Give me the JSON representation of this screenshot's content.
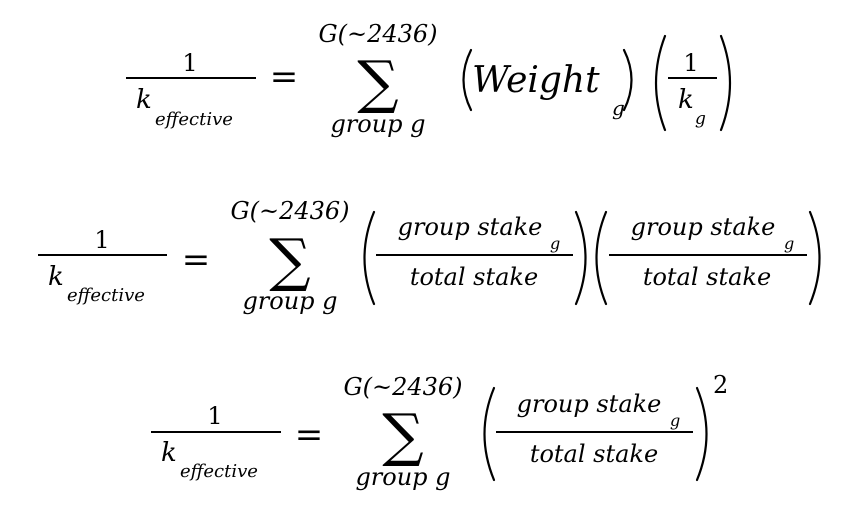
{
  "equations": [
    {
      "lhs_numerator": "1",
      "lhs_denominator": "k",
      "lhs_denominator_subscript": "effective",
      "equals": "=",
      "sum_symbol": "∑",
      "sum_upper": "G(~2436)",
      "sum_lower": "group g",
      "term1_base": "Weight",
      "term1_subscript": "g",
      "term2_numerator": "1",
      "term2_denominator": "k",
      "term2_denominator_subscript": "g"
    },
    {
      "lhs_numerator": "1",
      "lhs_denominator": "k",
      "lhs_denominator_subscript": "effective",
      "equals": "=",
      "sum_symbol": "∑",
      "sum_upper": "G(~2436)",
      "sum_lower": "group g",
      "term1_numerator": "group stake",
      "term1_numerator_subscript": "g",
      "term1_denominator": "total stake",
      "term2_numerator": "group stake",
      "term2_numerator_subscript": "g",
      "term2_denominator": "total stake"
    },
    {
      "lhs_numerator": "1",
      "lhs_denominator": "k",
      "lhs_denominator_subscript": "effective",
      "equals": "=",
      "sum_symbol": "∑",
      "sum_upper": "G(~2436)",
      "sum_lower": "group g",
      "term_numerator": "group stake",
      "term_numerator_subscript": "g",
      "term_denominator": "total stake",
      "exponent": "2"
    }
  ]
}
